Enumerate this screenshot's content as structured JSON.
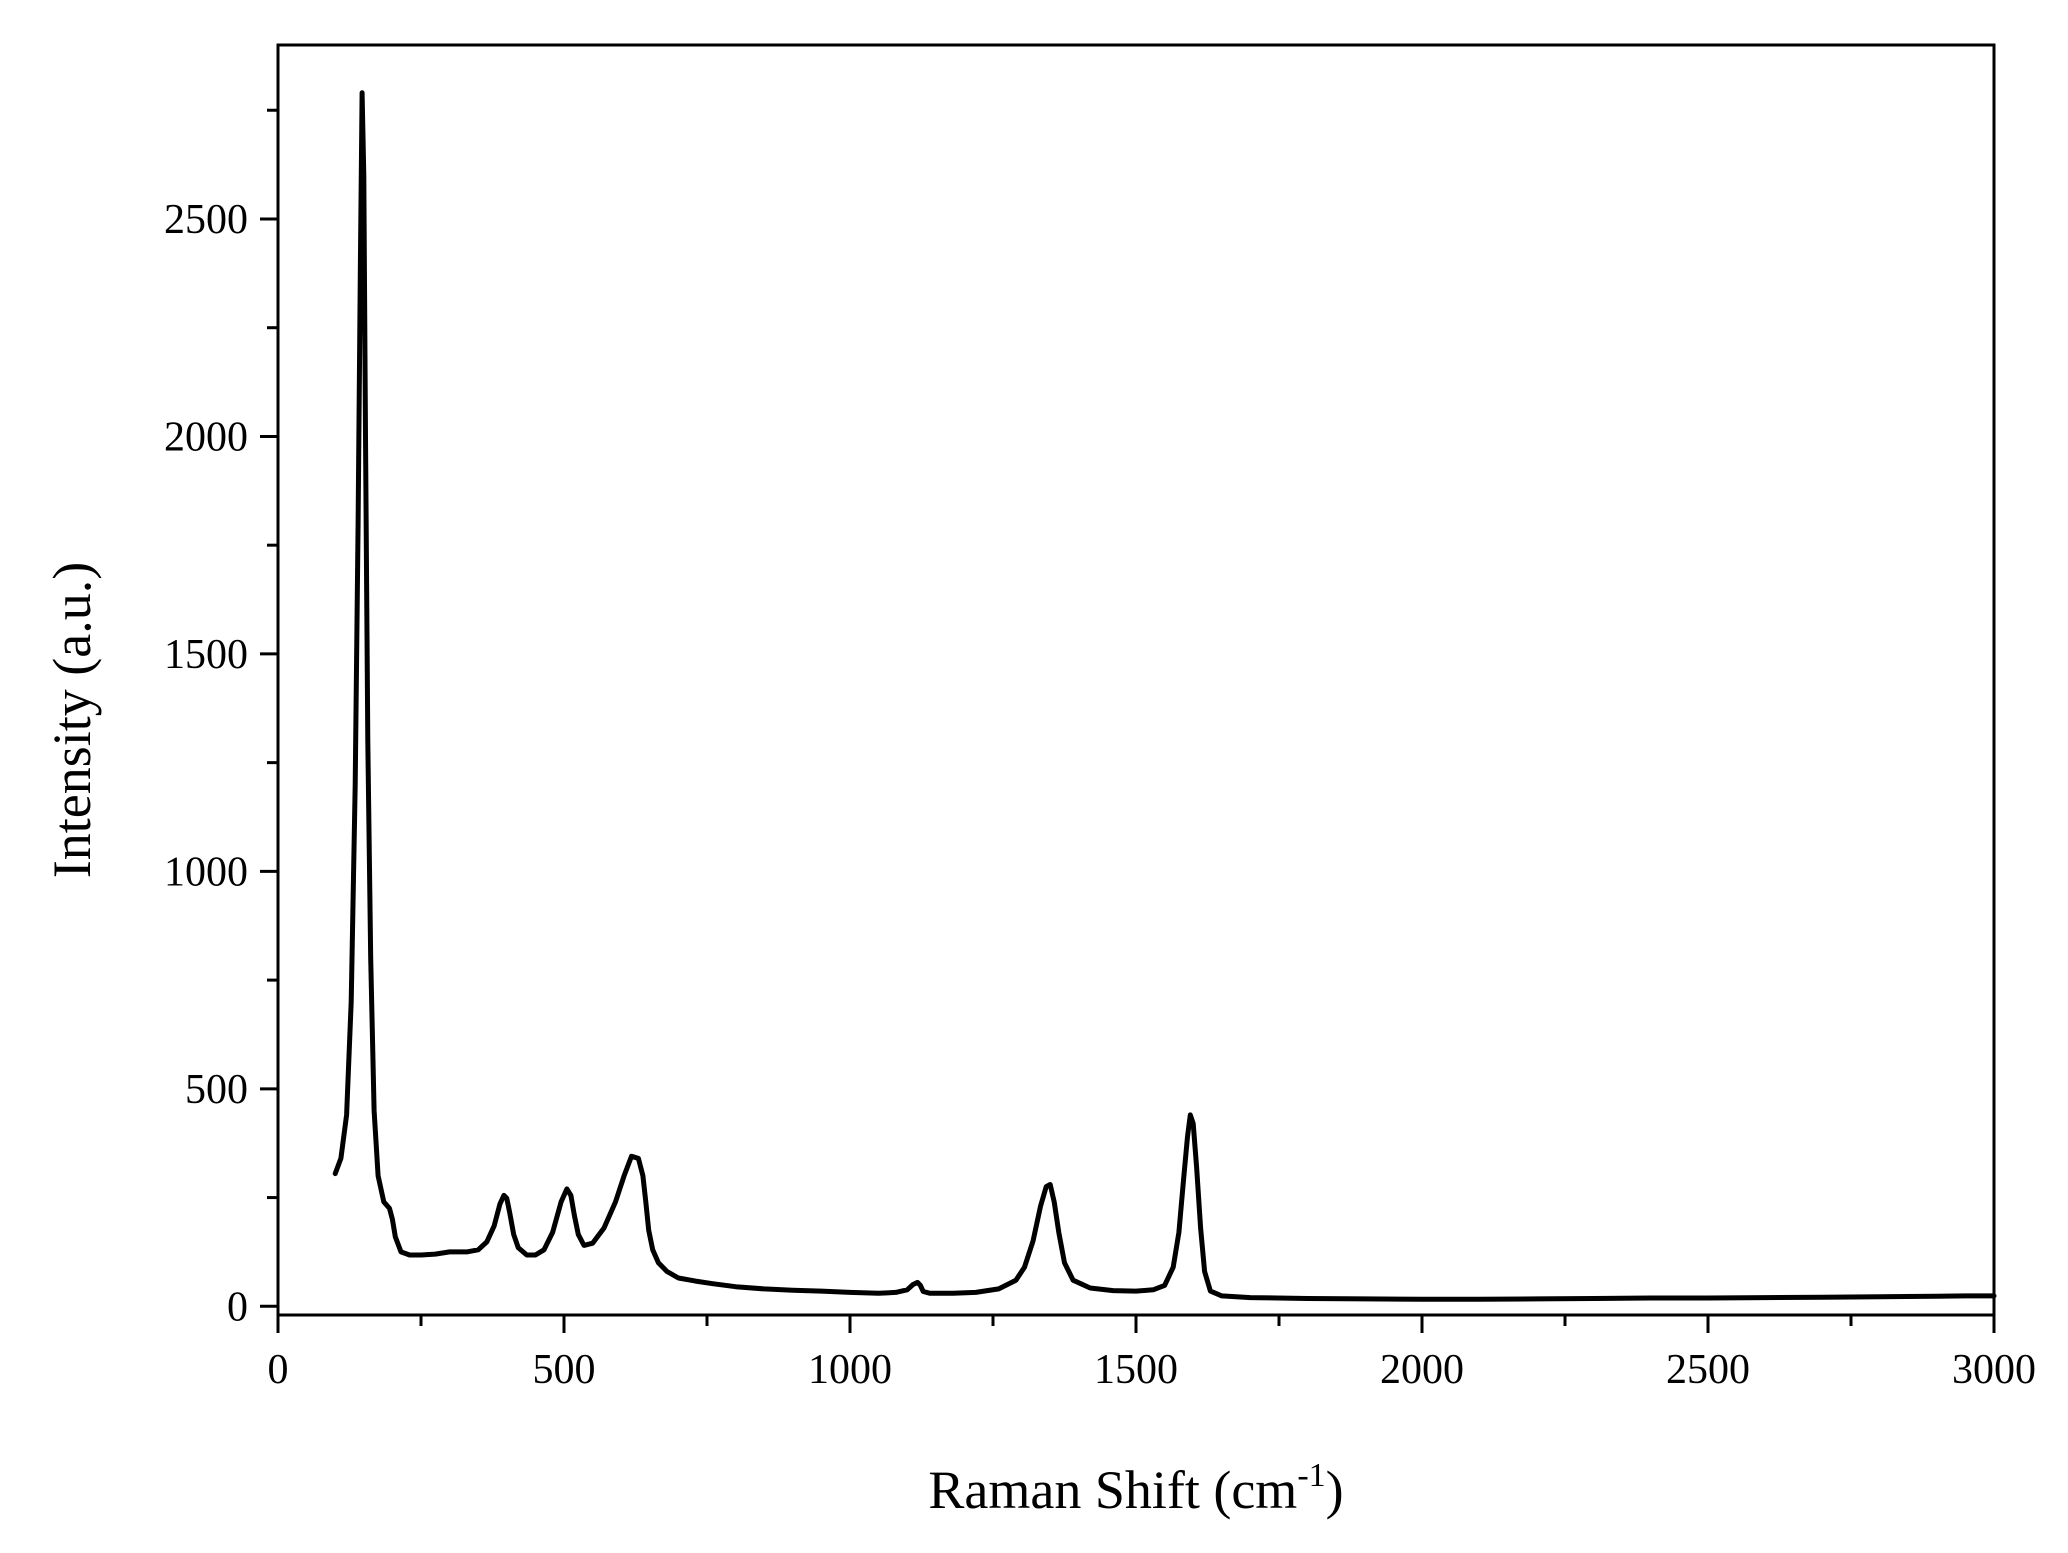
{
  "chart_data": {
    "type": "line",
    "title": "",
    "xlabel": "Raman Shift (cm",
    "xlabel_superscript": "-1",
    "xlabel_suffix": ")",
    "ylabel": "Intensity (a.u.)",
    "xlim": [
      0,
      3000
    ],
    "ylim": [
      -20,
      2900
    ],
    "x_ticks": [
      0,
      500,
      1000,
      1500,
      2000,
      2500,
      3000
    ],
    "x_tick_labels": [
      "0",
      "500",
      "1000",
      "1500",
      "2000",
      "2500",
      "3000"
    ],
    "y_ticks": [
      0,
      500,
      1000,
      1500,
      2000,
      2500
    ],
    "y_tick_labels": [
      "0",
      "500",
      "1000",
      "1500",
      "2000",
      "2500"
    ],
    "grid": false,
    "legend": "none",
    "line_color": "#000000",
    "series": [
      {
        "x": [
          100,
          110,
          120,
          128,
          135,
          140,
          144,
          147,
          150,
          153,
          157,
          162,
          168,
          175,
          185,
          195,
          200,
          205,
          215,
          230,
          250,
          275,
          300,
          330,
          350,
          365,
          378,
          388,
          395,
          400,
          405,
          412,
          420,
          435,
          450,
          465,
          480,
          495,
          505,
          512,
          518,
          525,
          535,
          550,
          570,
          590,
          605,
          618,
          630,
          638,
          643,
          648,
          655,
          665,
          680,
          700,
          730,
          760,
          800,
          850,
          900,
          950,
          1000,
          1050,
          1080,
          1100,
          1110,
          1118,
          1123,
          1128,
          1140,
          1180,
          1220,
          1260,
          1290,
          1305,
          1320,
          1333,
          1343,
          1350,
          1357,
          1365,
          1375,
          1390,
          1420,
          1460,
          1500,
          1530,
          1550,
          1565,
          1575,
          1583,
          1590,
          1595,
          1600,
          1606,
          1613,
          1620,
          1630,
          1650,
          1700,
          1800,
          1900,
          2000,
          2100,
          2200,
          2300,
          2400,
          2500,
          2600,
          2700,
          2800,
          2900,
          2950,
          3000
        ],
        "y": [
          305,
          340,
          440,
          700,
          1200,
          1800,
          2400,
          2790,
          2600,
          2000,
          1300,
          800,
          450,
          300,
          240,
          225,
          200,
          160,
          125,
          118,
          118,
          120,
          125,
          125,
          130,
          148,
          185,
          235,
          255,
          248,
          215,
          165,
          135,
          118,
          118,
          130,
          170,
          240,
          270,
          255,
          210,
          165,
          140,
          145,
          180,
          240,
          300,
          345,
          340,
          300,
          240,
          175,
          130,
          100,
          80,
          65,
          58,
          52,
          45,
          40,
          37,
          35,
          32,
          30,
          32,
          38,
          50,
          55,
          48,
          34,
          30,
          30,
          32,
          40,
          60,
          90,
          150,
          230,
          275,
          280,
          240,
          170,
          100,
          60,
          42,
          36,
          35,
          38,
          48,
          90,
          170,
          290,
          390,
          440,
          420,
          320,
          180,
          80,
          35,
          24,
          20,
          18,
          17,
          16,
          16,
          17,
          18,
          19,
          19,
          20,
          21,
          22,
          23,
          24,
          24
        ]
      }
    ]
  }
}
